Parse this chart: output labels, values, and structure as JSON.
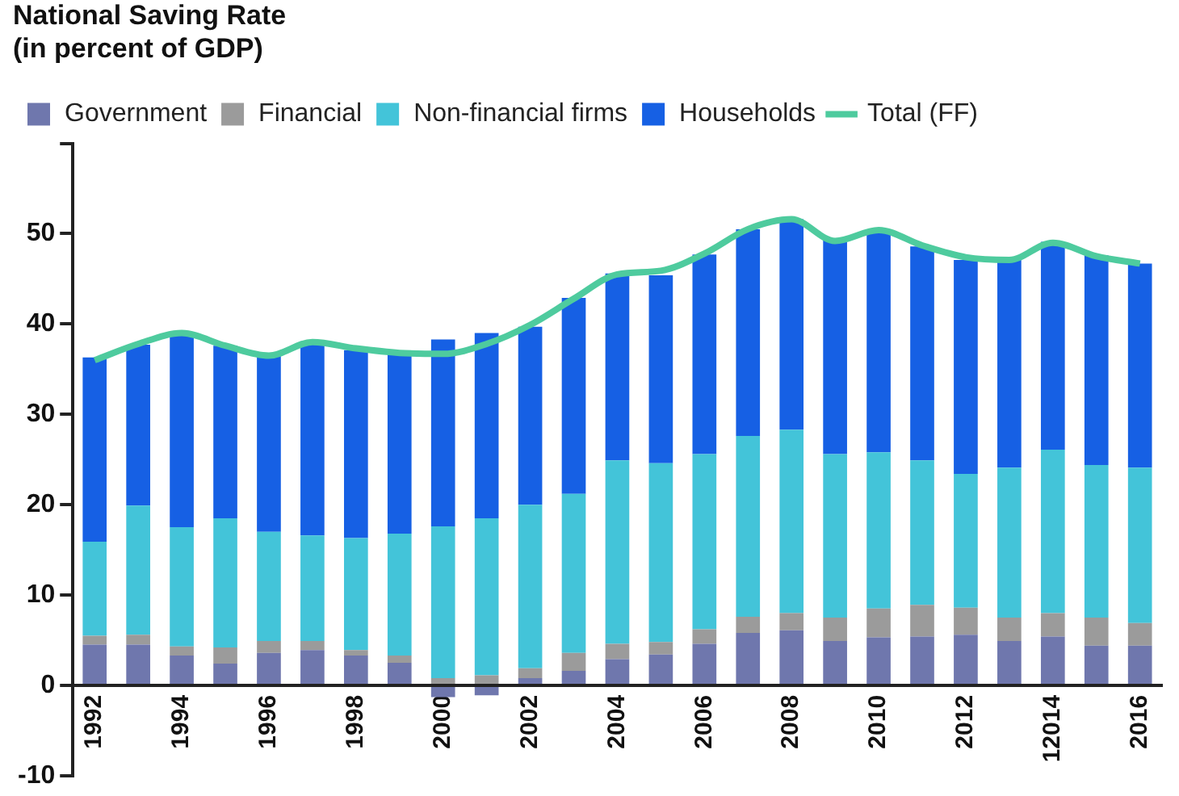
{
  "chart_data": {
    "type": "bar",
    "title": "National Saving Rate\n(in percent of GDP)",
    "stacked": true,
    "categories": [
      "1992",
      null,
      "1994",
      null,
      "1996",
      null,
      "1998",
      null,
      "2000",
      null,
      "2002",
      null,
      "2004",
      null,
      "2006",
      null,
      "2008",
      null,
      "2010",
      null,
      "2012",
      null,
      "12014",
      null,
      "2016"
    ],
    "series": [
      {
        "name": "Government",
        "color": "#6f77ad",
        "values": [
          4.5,
          4.5,
          3.3,
          2.4,
          3.6,
          3.9,
          3.3,
          2.5,
          -1.3,
          -1.1,
          0.8,
          1.6,
          2.9,
          3.4,
          4.6,
          5.8,
          6.1,
          4.9,
          5.3,
          5.4,
          5.6,
          4.9,
          5.4,
          4.4,
          4.4
        ]
      },
      {
        "name": "Financial",
        "color": "#9b9b9b",
        "values": [
          1.0,
          1.1,
          1.0,
          1.8,
          1.3,
          1.0,
          0.6,
          0.8,
          0.8,
          1.1,
          1.1,
          2.0,
          1.7,
          1.4,
          1.6,
          1.8,
          1.9,
          2.6,
          3.2,
          3.5,
          3.0,
          2.6,
          2.6,
          3.1,
          2.5
        ]
      },
      {
        "name": "Non-financial firms",
        "color": "#43c4d9",
        "values": [
          10.4,
          14.3,
          13.2,
          14.3,
          12.1,
          11.7,
          12.4,
          13.5,
          16.8,
          17.4,
          18.1,
          17.6,
          20.3,
          19.8,
          19.4,
          20.0,
          20.3,
          18.1,
          17.3,
          16.0,
          14.8,
          16.6,
          18.1,
          16.9,
          17.2
        ]
      },
      {
        "name": "Households",
        "color": "#1660e4",
        "values": [
          20.4,
          17.8,
          21.3,
          19.1,
          19.6,
          21.5,
          20.8,
          20.0,
          20.7,
          20.5,
          19.7,
          21.7,
          20.7,
          20.8,
          22.1,
          22.9,
          23.3,
          23.7,
          24.6,
          23.7,
          23.7,
          23.1,
          23.0,
          23.2,
          22.6
        ]
      },
      {
        "name": "Total (FF)",
        "type": "line",
        "color": "#4ecb9e",
        "values": [
          36.0,
          37.8,
          39.0,
          37.6,
          36.5,
          38.0,
          37.3,
          36.8,
          36.7,
          37.8,
          39.9,
          42.8,
          45.5,
          45.9,
          47.8,
          50.5,
          51.6,
          49.2,
          50.4,
          48.7,
          47.4,
          47.1,
          49.0,
          47.5,
          46.7
        ]
      }
    ],
    "ylim": [
      -10,
      60
    ],
    "yticks": [
      -10,
      0,
      10,
      20,
      30,
      40,
      50,
      {
        "value": 60,
        "label": null
      }
    ],
    "grid": false,
    "legend": "top left",
    "marker": "none",
    "line_style": "solid"
  }
}
